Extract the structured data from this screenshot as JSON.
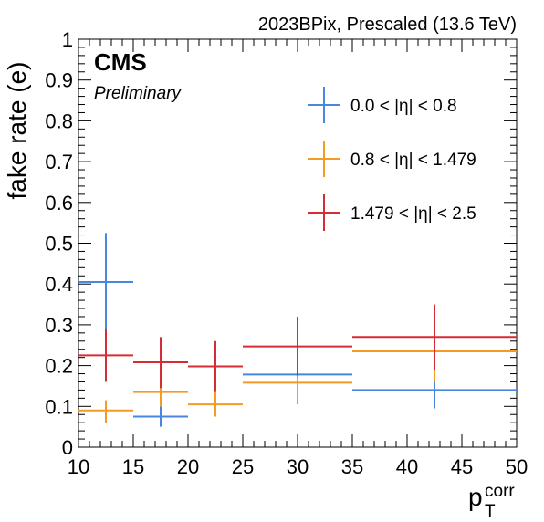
{
  "header": {
    "run_label": "2023BPix, Prescaled (13.6 TeV)",
    "experiment": "CMS",
    "status": "Preliminary"
  },
  "chart_data": {
    "type": "scatter",
    "style": "error-bars",
    "title": "2023BPix, Prescaled (13.6 TeV)",
    "ylabel": "fake rate (e)",
    "xlabel_main": "p",
    "xlabel_sub": "T",
    "xlabel_sup": "corr",
    "xlim": [
      10,
      50
    ],
    "ylim": [
      0,
      1
    ],
    "xticks": [
      10,
      15,
      20,
      25,
      30,
      35,
      40,
      45,
      50
    ],
    "yticks": [
      0,
      0.1,
      0.2,
      0.3,
      0.4,
      0.5,
      0.6,
      0.7,
      0.8,
      0.9,
      1
    ],
    "legend_position": "top-right",
    "series": [
      {
        "name": "0.0 < |η| < 0.8",
        "color": "#4a86e0",
        "points": [
          {
            "xlo": 10,
            "xhi": 15,
            "x": 12.5,
            "y": 0.405,
            "ylo": 0.29,
            "yhi": 0.525
          },
          {
            "xlo": 15,
            "xhi": 20,
            "x": 17.5,
            "y": 0.075,
            "ylo": 0.05,
            "yhi": 0.1
          },
          {
            "xlo": 25,
            "xhi": 35,
            "x": 30,
            "y": 0.178,
            "ylo": 0.16,
            "yhi": 0.2
          },
          {
            "xlo": 35,
            "xhi": 50,
            "x": 42.5,
            "y": 0.14,
            "ylo": 0.095,
            "yhi": 0.185
          }
        ]
      },
      {
        "name": "0.8 < |η| < 1.479",
        "color": "#f59a23",
        "points": [
          {
            "xlo": 10,
            "xhi": 15,
            "x": 12.5,
            "y": 0.09,
            "ylo": 0.06,
            "yhi": 0.115
          },
          {
            "xlo": 15,
            "xhi": 20,
            "x": 17.5,
            "y": 0.135,
            "ylo": 0.1,
            "yhi": 0.17
          },
          {
            "xlo": 20,
            "xhi": 25,
            "x": 22.5,
            "y": 0.105,
            "ylo": 0.075,
            "yhi": 0.135
          },
          {
            "xlo": 25,
            "xhi": 35,
            "x": 30,
            "y": 0.158,
            "ylo": 0.105,
            "yhi": 0.205
          },
          {
            "xlo": 35,
            "xhi": 50,
            "x": 42.5,
            "y": 0.235,
            "ylo": 0.16,
            "yhi": 0.31
          }
        ]
      },
      {
        "name": "1.479 < |η| < 2.5",
        "color": "#d62c36",
        "points": [
          {
            "xlo": 10,
            "xhi": 15,
            "x": 12.5,
            "y": 0.225,
            "ylo": 0.16,
            "yhi": 0.29
          },
          {
            "xlo": 15,
            "xhi": 20,
            "x": 17.5,
            "y": 0.208,
            "ylo": 0.145,
            "yhi": 0.27
          },
          {
            "xlo": 20,
            "xhi": 25,
            "x": 22.5,
            "y": 0.198,
            "ylo": 0.135,
            "yhi": 0.26
          },
          {
            "xlo": 25,
            "xhi": 35,
            "x": 30,
            "y": 0.247,
            "ylo": 0.175,
            "yhi": 0.32
          },
          {
            "xlo": 35,
            "xhi": 50,
            "x": 42.5,
            "y": 0.27,
            "ylo": 0.19,
            "yhi": 0.35
          }
        ]
      }
    ]
  }
}
